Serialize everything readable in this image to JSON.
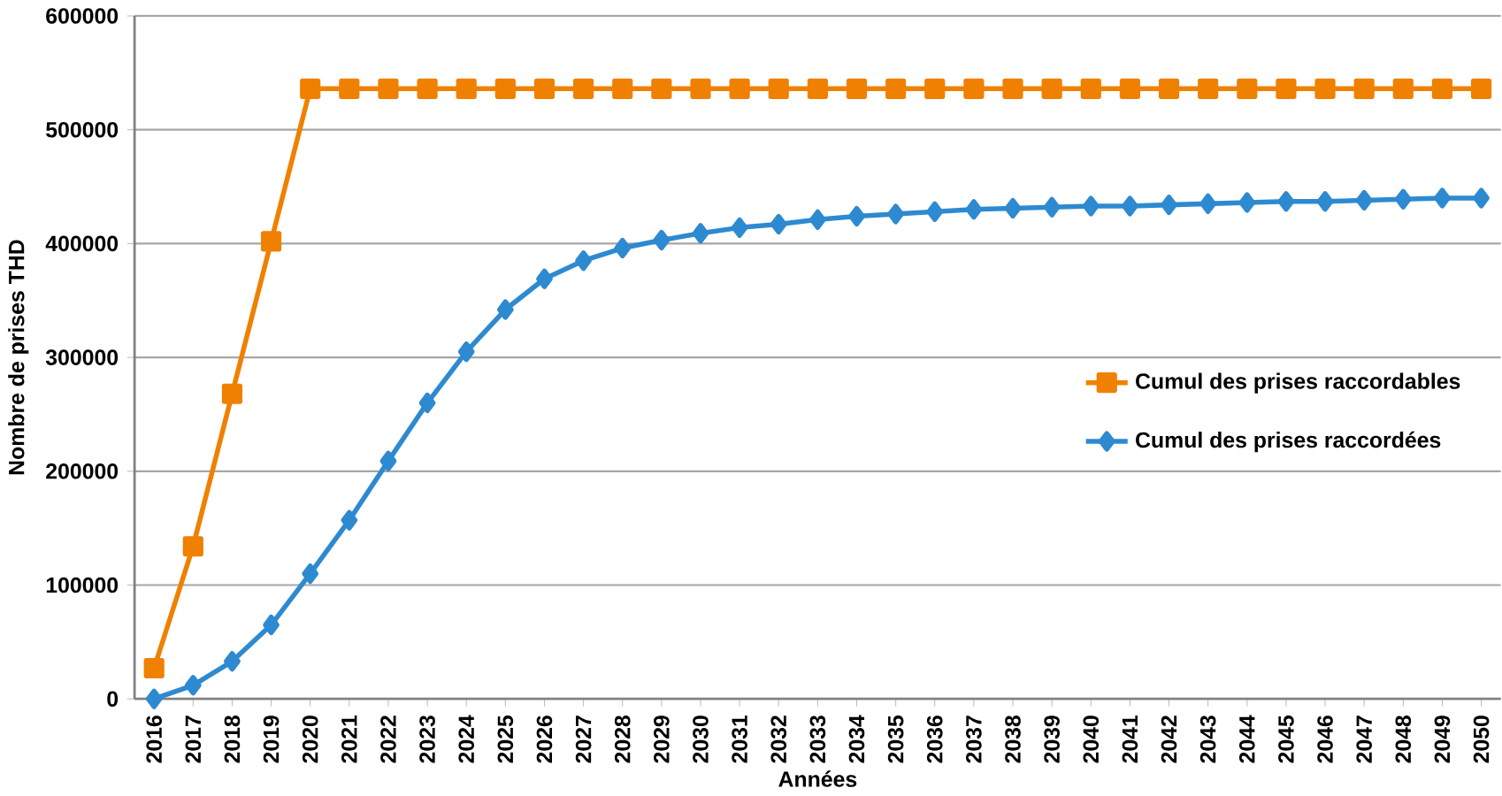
{
  "chart_data": {
    "type": "line",
    "xlabel": "Années",
    "ylabel": "Nombre de prises THD",
    "categories": [
      "2016",
      "2017",
      "2018",
      "2019",
      "2020",
      "2021",
      "2022",
      "2023",
      "2024",
      "2025",
      "2026",
      "2027",
      "2028",
      "2029",
      "2030",
      "2031",
      "2032",
      "2033",
      "2034",
      "2035",
      "2036",
      "2037",
      "2038",
      "2039",
      "2040",
      "2041",
      "2042",
      "2043",
      "2044",
      "2045",
      "2046",
      "2047",
      "2048",
      "2049",
      "2050"
    ],
    "series": [
      {
        "name": "Cumul des prises raccordables",
        "color": "#f08000",
        "marker": "square",
        "values": [
          27000,
          134000,
          268000,
          402000,
          536000,
          536000,
          536000,
          536000,
          536000,
          536000,
          536000,
          536000,
          536000,
          536000,
          536000,
          536000,
          536000,
          536000,
          536000,
          536000,
          536000,
          536000,
          536000,
          536000,
          536000,
          536000,
          536000,
          536000,
          536000,
          536000,
          536000,
          536000,
          536000,
          536000,
          536000
        ]
      },
      {
        "name": "Cumul des prises raccordées",
        "color": "#2e8ad0",
        "marker": "diamond",
        "values": [
          0,
          12000,
          33000,
          65000,
          110000,
          157000,
          209000,
          260000,
          305000,
          342000,
          369000,
          385000,
          396000,
          403000,
          409000,
          414000,
          417000,
          421000,
          424000,
          426000,
          428000,
          430000,
          431000,
          432000,
          433000,
          433000,
          434000,
          435000,
          436000,
          437000,
          437000,
          438000,
          439000,
          440000,
          440000
        ]
      }
    ],
    "ylim": [
      0,
      600000
    ],
    "yticks": [
      0,
      100000,
      200000,
      300000,
      400000,
      500000,
      600000
    ],
    "grid": "y",
    "legend": "right"
  }
}
